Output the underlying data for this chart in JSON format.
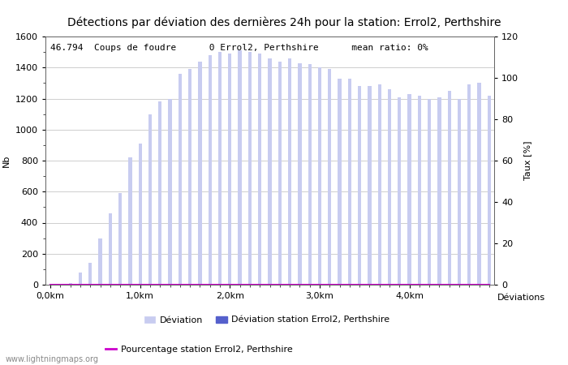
{
  "title": "Détections par déviation des dernières 24h pour la station: Errol2, Perthshire",
  "ylabel_left": "Nb",
  "ylabel_right": "Taux [%]",
  "xlabel": "Déviations",
  "annotation": "46.794  Coups de foudre      0 Errol2, Perthshire      mean ratio: 0%",
  "xlim": [
    -0.5,
    44.5
  ],
  "ylim_left": [
    0,
    1600
  ],
  "ylim_right": [
    0,
    120
  ],
  "xtick_positions": [
    0,
    9,
    18,
    27,
    36
  ],
  "xtick_labels": [
    "0,0km",
    "1,0km",
    "2,0km",
    "3,0km",
    "4,0km"
  ],
  "ytick_left": [
    0,
    200,
    400,
    600,
    800,
    1000,
    1200,
    1400,
    1600
  ],
  "ytick_right": [
    0,
    20,
    40,
    60,
    80,
    100,
    120
  ],
  "bar_values": [
    0,
    5,
    10,
    80,
    140,
    300,
    460,
    590,
    820,
    910,
    1100,
    1180,
    1200,
    1360,
    1390,
    1440,
    1480,
    1500,
    1490,
    1510,
    1500,
    1490,
    1460,
    1440,
    1460,
    1430,
    1420,
    1400,
    1390,
    1330,
    1330,
    1280,
    1280,
    1290,
    1260,
    1210,
    1230,
    1220,
    1200,
    1210,
    1250,
    1200,
    1290,
    1300,
    1220
  ],
  "station_bar_values": [
    0,
    0,
    0,
    0,
    0,
    0,
    0,
    0,
    0,
    0,
    0,
    0,
    0,
    0,
    0,
    0,
    0,
    0,
    0,
    0,
    0,
    0,
    0,
    0,
    0,
    0,
    0,
    0,
    0,
    0,
    0,
    0,
    0,
    0,
    0,
    0,
    0,
    0,
    0,
    0,
    0,
    0,
    0,
    0,
    0
  ],
  "percentage_values": [
    0,
    0,
    0,
    0,
    0,
    0,
    0,
    0,
    0,
    0,
    0,
    0,
    0,
    0,
    0,
    0,
    0,
    0,
    0,
    0,
    0,
    0,
    0,
    0,
    0,
    0,
    0,
    0,
    0,
    0,
    0,
    0,
    0,
    0,
    0,
    0,
    0,
    0,
    0,
    0,
    0,
    0,
    0,
    0,
    0
  ],
  "bar_color_global": "#c8ccf0",
  "bar_color_station": "#5560cc",
  "line_color_percentage": "#cc00cc",
  "background_color": "#ffffff",
  "grid_color": "#bbbbbb",
  "title_fontsize": 10,
  "axis_fontsize": 8,
  "tick_fontsize": 8,
  "annotation_fontsize": 8,
  "watermark": "www.lightningmaps.org",
  "legend_deviation": "Déviation",
  "legend_station": "Déviation station Errol2, Perthshire",
  "legend_percentage": "Pourcentage station Errol2, Perthshire",
  "figwidth": 7.0,
  "figheight": 4.5,
  "dpi": 100
}
